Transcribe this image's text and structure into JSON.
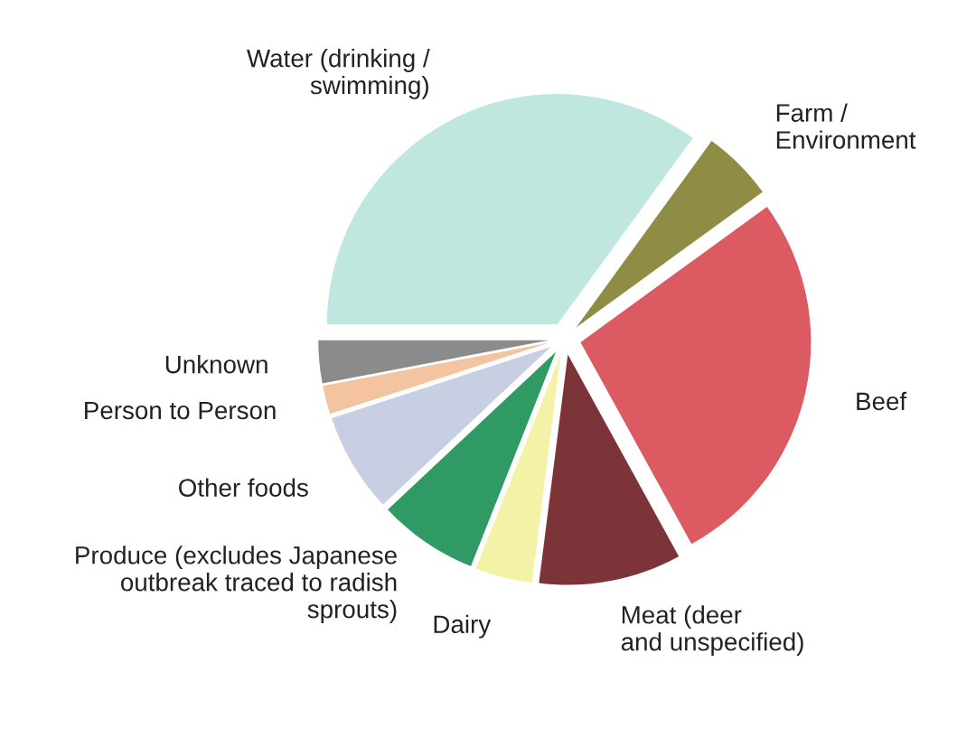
{
  "chart_data": {
    "type": "pie",
    "categories": [
      "Water (drinking /\nswimming)",
      "Farm /\nEnvironment",
      "Beef",
      "Meat (deer\nand unspecified)",
      "Dairy",
      "Produce (excludes Japanese\noutbreak traced to radish\nsprouts)",
      "Other foods",
      "Person to Person",
      "Unknown"
    ],
    "values": [
      35,
      5,
      27,
      10,
      4,
      7,
      7,
      2,
      3
    ],
    "colors": [
      "#bfe6df",
      "#8f8c45",
      "#dc5a62",
      "#7c3438",
      "#f4f2a6",
      "#2f9a63",
      "#c9cfe2",
      "#f3c49f",
      "#8b8b8b"
    ]
  }
}
